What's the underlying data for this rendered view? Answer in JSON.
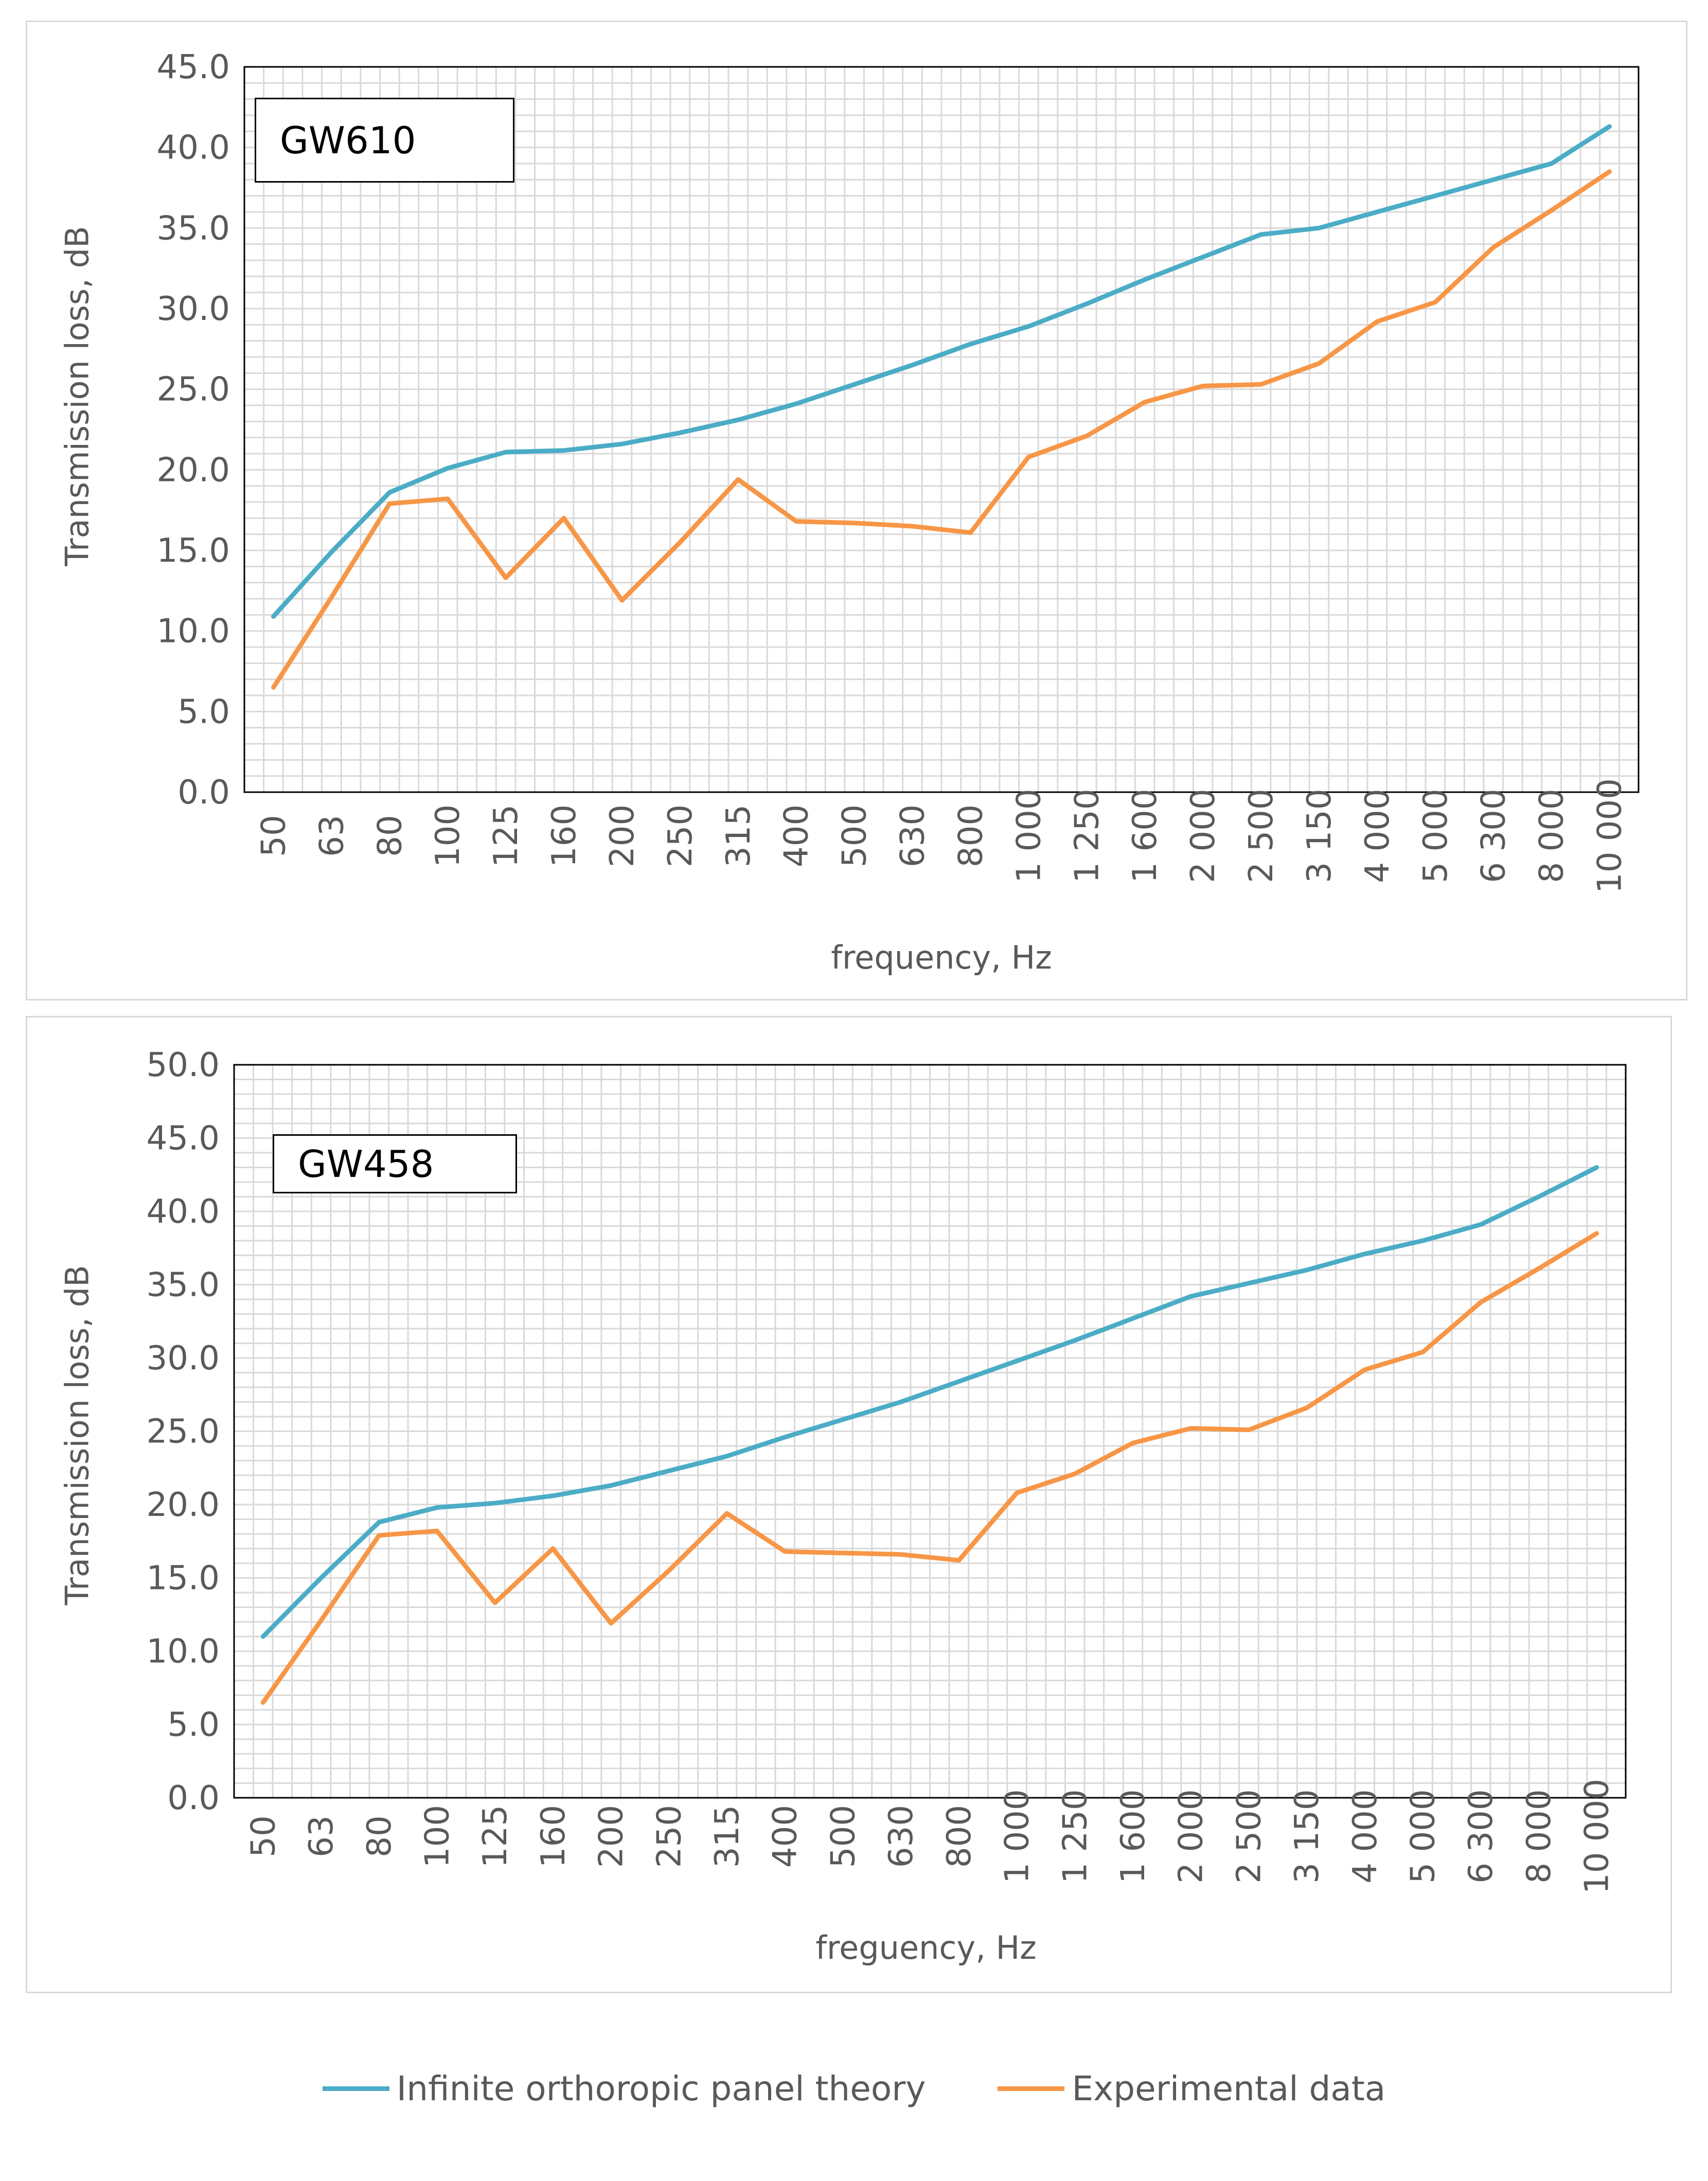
{
  "colors": {
    "theory": "#4bacc6",
    "experimental": "#f79646",
    "grid": "#d9d9d9",
    "axis_text": "#595959"
  },
  "legend": [
    {
      "name": "Infinite orthoropic panel theory",
      "color": "#4bacc6"
    },
    {
      "name": "Experimental data",
      "color": "#f79646"
    }
  ],
  "chart_data": [
    {
      "type": "line",
      "title": "GW610",
      "xlabel": "frequency, Hz",
      "ylabel": "Transmission loss, dB",
      "ylim": [
        0,
        45
      ],
      "ytick_step": 5,
      "yticks": [
        "0.0",
        "5.0",
        "10.0",
        "15.0",
        "20.0",
        "25.0",
        "30.0",
        "35.0",
        "40.0",
        "45.0"
      ],
      "grid": true,
      "categories": [
        "50",
        "63",
        "80",
        "100",
        "125",
        "160",
        "200",
        "250",
        "315",
        "400",
        "500",
        "630",
        "800",
        "1 000",
        "1 250",
        "1 600",
        "2 000",
        "2 500",
        "3 150",
        "4 000",
        "5 000",
        "6 300",
        "8 000",
        "10 000"
      ],
      "series": [
        {
          "name": "Infinite orthoropic panel theory",
          "key": "theory",
          "values": [
            10.9,
            14.9,
            18.6,
            20.1,
            21.1,
            21.2,
            21.6,
            22.3,
            23.1,
            24.1,
            25.3,
            26.5,
            27.8,
            28.9,
            30.3,
            31.8,
            33.2,
            34.6,
            35.0,
            36.0,
            37.0,
            38.0,
            39.0,
            41.3
          ]
        },
        {
          "name": "Experimental data",
          "key": "experimental",
          "values": [
            6.5,
            12.1,
            17.9,
            18.2,
            13.3,
            17.0,
            11.9,
            15.5,
            19.4,
            16.8,
            16.7,
            16.5,
            16.1,
            20.8,
            22.1,
            24.2,
            25.2,
            25.3,
            26.6,
            29.2,
            30.4,
            33.8,
            36.1,
            38.5
          ]
        }
      ]
    },
    {
      "type": "line",
      "title": "GW458",
      "xlabel": "freguency, Hz",
      "ylabel": "Transmission loss, dB",
      "ylim": [
        0,
        50
      ],
      "ytick_step": 5,
      "yticks": [
        "0.0",
        "5.0",
        "10.0",
        "15.0",
        "20.0",
        "25.0",
        "30.0",
        "35.0",
        "40.0",
        "45.0",
        "50.0"
      ],
      "grid": true,
      "categories": [
        "50",
        "63",
        "80",
        "100",
        "125",
        "160",
        "200",
        "250",
        "315",
        "400",
        "500",
        "630",
        "800",
        "1 000",
        "1 250",
        "1 600",
        "2 000",
        "2 500",
        "3 150",
        "4 000",
        "5 000",
        "6 300",
        "8 000",
        "10 000"
      ],
      "series": [
        {
          "name": "Infinite orthoropic panel theory",
          "key": "theory",
          "values": [
            11.0,
            15.0,
            18.8,
            19.8,
            20.1,
            20.6,
            21.3,
            22.3,
            23.3,
            24.6,
            25.8,
            27.0,
            28.4,
            29.8,
            31.2,
            32.7,
            34.2,
            35.1,
            36.0,
            37.1,
            38.0,
            39.1,
            41.0,
            43.0
          ]
        },
        {
          "name": "Experimental data",
          "key": "experimental",
          "values": [
            6.5,
            12.1,
            17.9,
            18.2,
            13.3,
            17.0,
            11.9,
            15.5,
            19.4,
            16.8,
            16.7,
            16.6,
            16.2,
            20.8,
            22.1,
            24.2,
            25.2,
            25.1,
            26.6,
            29.2,
            30.4,
            33.8,
            36.1,
            38.5
          ]
        }
      ]
    }
  ]
}
